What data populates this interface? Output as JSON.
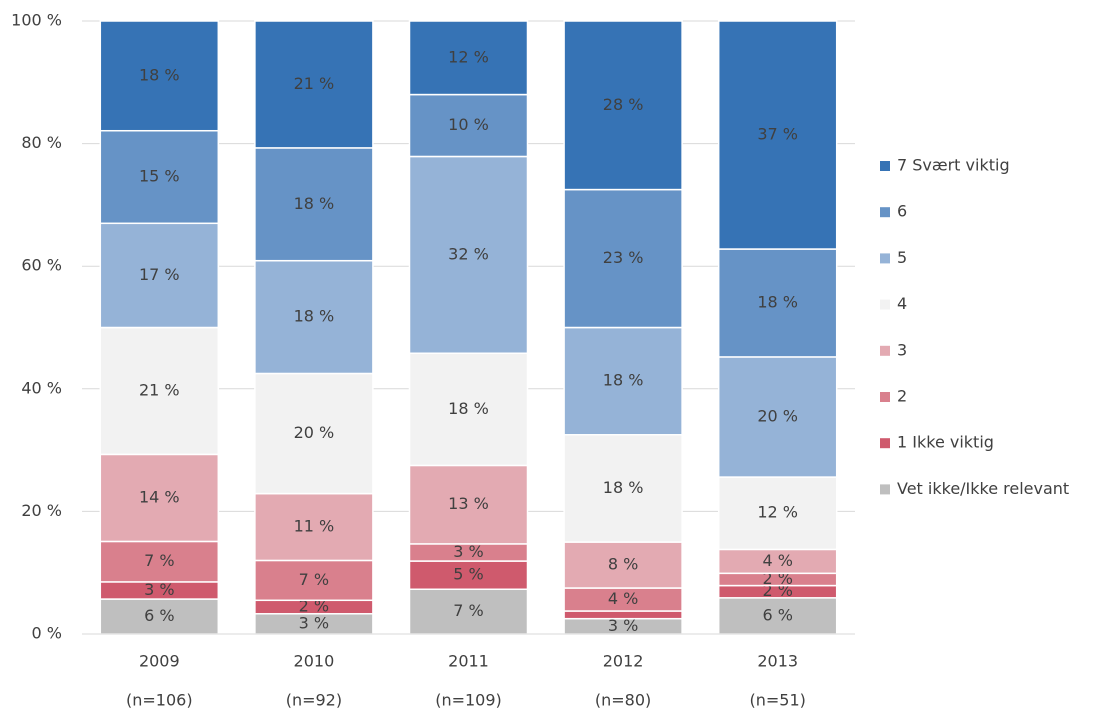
{
  "chart_data": {
    "type": "stacked_bar",
    "categories": [
      "2009",
      "2010",
      "2011",
      "2012",
      "2013"
    ],
    "sample_sizes": [
      "(n=106)",
      "(n=92)",
      "(n=109)",
      "(n=80)",
      "(n=51)"
    ],
    "ylim": [
      0,
      100
    ],
    "yticks": [
      {
        "value": 0,
        "label": "0 %"
      },
      {
        "value": 20,
        "label": "20 %"
      },
      {
        "value": 40,
        "label": "40 %"
      },
      {
        "value": 60,
        "label": "60 %"
      },
      {
        "value": 80,
        "label": "80 %"
      },
      {
        "value": 100,
        "label": "100 %"
      }
    ],
    "grid": true,
    "legend": "right",
    "series": [
      {
        "name": "Vet ikke/Ikke relevant",
        "color": "#bfbfbf",
        "values": [
          5.7,
          3.3,
          7.3,
          2.5,
          5.9
        ],
        "value_labels": [
          "6 %",
          "3 %",
          "7 %",
          "3 %",
          "6 %"
        ]
      },
      {
        "name": "1 Ikke viktig",
        "color": "#cf5a6d",
        "values": [
          2.8,
          2.2,
          4.6,
          1.25,
          2.0
        ],
        "value_labels": [
          "3 %",
          "2 %",
          "5 %",
          null,
          "2 %"
        ]
      },
      {
        "name": "2",
        "color": "#d9808d",
        "values": [
          6.6,
          6.5,
          2.8,
          3.75,
          2.0
        ],
        "value_labels": [
          "7 %",
          "7 %",
          "3 %",
          "4 %",
          "2 %"
        ]
      },
      {
        "name": "3",
        "color": "#e3aab2",
        "values": [
          14.2,
          10.9,
          12.8,
          7.5,
          3.9
        ],
        "value_labels": [
          "14 %",
          "11 %",
          "13 %",
          "8 %",
          "4 %"
        ]
      },
      {
        "name": "4",
        "color": "#f2f2f2",
        "values": [
          20.7,
          19.6,
          18.3,
          17.5,
          11.8
        ],
        "value_labels": [
          "21 %",
          "20 %",
          "18 %",
          "18 %",
          "12 %"
        ]
      },
      {
        "name": "5",
        "color": "#95b3d7",
        "values": [
          17.0,
          18.4,
          32.1,
          17.5,
          19.6
        ],
        "value_labels": [
          "17 %",
          "18 %",
          "32 %",
          "18 %",
          "20 %"
        ]
      },
      {
        "name": "6",
        "color": "#6693c6",
        "values": [
          15.1,
          18.4,
          10.1,
          22.5,
          17.6
        ],
        "value_labels": [
          "15 %",
          "18 %",
          "10 %",
          "23 %",
          "18 %"
        ]
      },
      {
        "name": "7 Svært viktig",
        "color": "#3673b5",
        "values": [
          17.9,
          20.7,
          12.0,
          27.5,
          37.2
        ],
        "value_labels": [
          "18 %",
          "21 %",
          "12 %",
          "28 %",
          "37 %"
        ]
      }
    ]
  }
}
